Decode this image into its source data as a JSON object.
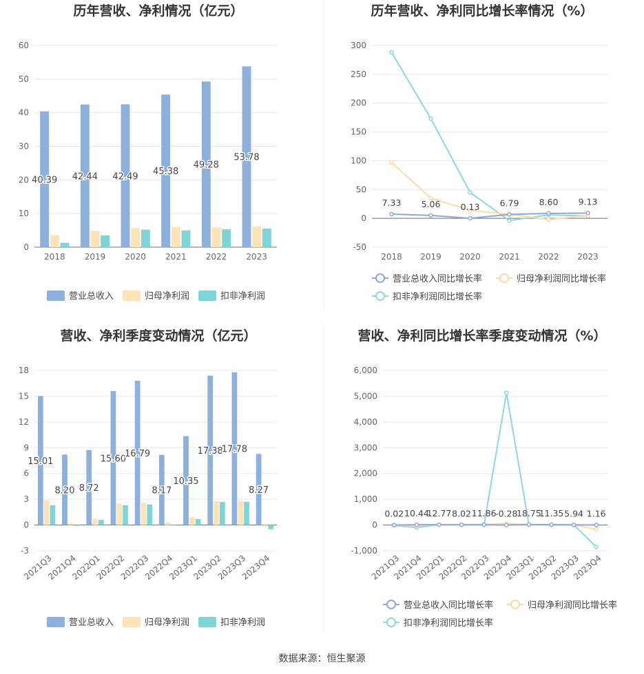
{
  "footer": {
    "source": "数据来源：恒生聚源"
  },
  "colors": {
    "revenue": "#8eb0dd",
    "net_profit": "#fde4b8",
    "deducted_profit": "#7fd4d8",
    "grid": "#e8e8e8",
    "axis_text": "#666666",
    "label_text": "#333333"
  },
  "chart_data": [
    {
      "type": "bar",
      "title": "历年营收、净利情况（亿元）",
      "categories": [
        "2018",
        "2019",
        "2020",
        "2021",
        "2022",
        "2023"
      ],
      "ylim": [
        0,
        60
      ],
      "yticks": [
        0,
        10,
        20,
        30,
        40,
        50,
        60
      ],
      "series": [
        {
          "name": "营业总收入",
          "values": [
            40.39,
            42.44,
            42.49,
            45.38,
            49.28,
            53.78
          ],
          "labels": [
            "40.39",
            "42.44",
            "42.49",
            "45.38",
            "49.28",
            "53.78"
          ]
        },
        {
          "name": "归母净利润",
          "values": [
            3.6,
            4.9,
            5.6,
            6.0,
            5.9,
            6.2
          ]
        },
        {
          "name": "扣非净利润",
          "values": [
            1.3,
            3.5,
            5.2,
            5.0,
            5.3,
            5.5
          ]
        }
      ],
      "legend": "bottom",
      "grid": true
    },
    {
      "type": "line",
      "title": "历年营收、净利同比增长率情况（%）",
      "categories": [
        "2018",
        "2019",
        "2020",
        "2021",
        "2022",
        "2023"
      ],
      "ylim": [
        -50,
        300
      ],
      "yticks": [
        -50,
        0,
        50,
        100,
        150,
        200,
        250,
        300
      ],
      "series": [
        {
          "name": "营业总收入同比增长率",
          "values": [
            7.33,
            5.06,
            0.13,
            6.79,
            8.6,
            9.13
          ],
          "labels": [
            "7.33",
            "5.06",
            "0.13",
            "6.79",
            "8.60",
            "9.13"
          ]
        },
        {
          "name": "归母净利润同比增长率",
          "values": [
            97,
            35,
            14,
            7,
            -2,
            5
          ]
        },
        {
          "name": "扣非净利润同比增长率",
          "values": [
            288,
            173,
            45,
            -4,
            6,
            4
          ]
        }
      ],
      "legend": "bottom",
      "grid": true
    },
    {
      "type": "bar",
      "title": "营收、净利季度变动情况（亿元）",
      "categories": [
        "2021Q3",
        "2021Q4",
        "2022Q1",
        "2022Q2",
        "2022Q3",
        "2022Q4",
        "2023Q1",
        "2023Q2",
        "2023Q3",
        "2023Q4"
      ],
      "ylim": [
        -3,
        18
      ],
      "yticks": [
        -3,
        0,
        3,
        6,
        9,
        12,
        15,
        18
      ],
      "series": [
        {
          "name": "营业总收入",
          "values": [
            15.01,
            8.2,
            8.72,
            15.6,
            16.79,
            8.17,
            10.35,
            17.38,
            17.78,
            8.27
          ],
          "labels": [
            "15.01",
            "8.20",
            "8.72",
            "15.60",
            "16.79",
            "8.17",
            "10.35",
            "17.38",
            "17.78",
            "8.27"
          ]
        },
        {
          "name": "归母净利润",
          "values": [
            2.9,
            0.2,
            0.7,
            2.5,
            2.6,
            0.3,
            0.9,
            2.8,
            2.8,
            -0.2
          ]
        },
        {
          "name": "扣非净利润",
          "values": [
            2.3,
            -0.1,
            0.6,
            2.3,
            2.4,
            -0.05,
            0.7,
            2.7,
            2.7,
            -0.5
          ]
        }
      ],
      "legend": "bottom",
      "grid": true
    },
    {
      "type": "line",
      "title": "营收、净利同比增长率季度变动情况（%）",
      "categories": [
        "2021Q3",
        "2021Q4",
        "2022Q1",
        "2022Q2",
        "2022Q3",
        "2022Q4",
        "2023Q1",
        "2023Q2",
        "2023Q3",
        "2023Q4"
      ],
      "ylim": [
        -1000,
        6000
      ],
      "yticks": [
        -1000,
        0,
        1000,
        2000,
        3000,
        4000,
        5000,
        6000
      ],
      "ytick_labels": [
        "-1,000",
        "0",
        "1,000",
        "2,000",
        "3,000",
        "4,000",
        "5,000",
        "6,000"
      ],
      "series": [
        {
          "name": "营业总收入同比增长率",
          "values": [
            0.02,
            10.44,
            12.77,
            8.02,
            11.86,
            -0.28,
            18.75,
            11.35,
            5.94,
            1.16
          ],
          "labels": [
            "0.02",
            "10.44",
            "12.77",
            "8.02",
            "11.86",
            "-0.28",
            "18.75",
            "11.35",
            "5.94",
            "1.16"
          ]
        },
        {
          "name": "归母净利润同比增长率",
          "values": [
            -10,
            -40,
            20,
            10,
            15,
            60,
            5,
            15,
            5,
            -170
          ]
        },
        {
          "name": "扣非净利润同比增长率",
          "values": [
            -20,
            -100,
            10,
            5,
            5,
            5130,
            10,
            10,
            5,
            -850
          ]
        }
      ],
      "legend": "bottom",
      "grid": true
    }
  ]
}
